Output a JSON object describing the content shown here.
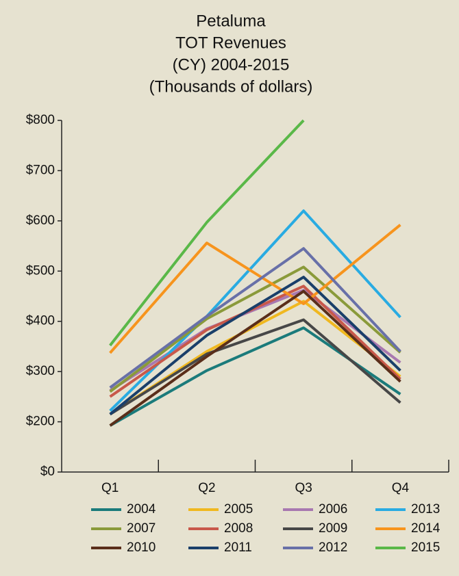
{
  "chart_data": {
    "type": "line",
    "title": [
      "Petaluma",
      "TOT Revenues",
      "(CY) 2004-2015",
      "(Thousands of dollars)"
    ],
    "categories": [
      "Q1",
      "Q2",
      "Q3",
      "Q4"
    ],
    "ylim": [
      0,
      800
    ],
    "ybreak": [
      0,
      200
    ],
    "yticks": [
      {
        "value": 0,
        "label": "$0"
      },
      {
        "value": 200,
        "label": "$200"
      },
      {
        "value": 300,
        "label": "$300"
      },
      {
        "value": 400,
        "label": "$400"
      },
      {
        "value": 500,
        "label": "$500"
      },
      {
        "value": 600,
        "label": "$600"
      },
      {
        "value": 700,
        "label": "$700"
      },
      {
        "value": 800,
        "label": "$800"
      }
    ],
    "series": [
      {
        "name": "2004",
        "color": "#1b7b7b",
        "values": [
          185,
          302,
          387,
          255
        ]
      },
      {
        "name": "2005",
        "color": "#f0b820",
        "values": [
          215,
          340,
          440,
          290
        ]
      },
      {
        "name": "2006",
        "color": "#a878b0",
        "values": [
          262,
          385,
          462,
          318
        ]
      },
      {
        "name": "2013",
        "color": "#29abe2",
        "values": [
          222,
          410,
          620,
          408
        ]
      },
      {
        "name": "2007",
        "color": "#8a9a3a",
        "values": [
          260,
          405,
          508,
          338
        ]
      },
      {
        "name": "2008",
        "color": "#c8584a",
        "values": [
          250,
          383,
          470,
          285
        ]
      },
      {
        "name": "2009",
        "color": "#474747",
        "values": [
          215,
          335,
          403,
          238
        ]
      },
      {
        "name": "2014",
        "color": "#f7941d",
        "values": [
          337,
          556,
          435,
          592
        ]
      },
      {
        "name": "2010",
        "color": "#5a2e1a",
        "values": [
          185,
          330,
          460,
          280
        ]
      },
      {
        "name": "2011",
        "color": "#1a3f6a",
        "values": [
          215,
          372,
          488,
          302
        ]
      },
      {
        "name": "2012",
        "color": "#6870a8",
        "values": [
          268,
          410,
          545,
          340
        ]
      },
      {
        "name": "2015",
        "color": "#5ab848",
        "values": [
          352,
          597,
          800,
          null
        ]
      }
    ]
  }
}
